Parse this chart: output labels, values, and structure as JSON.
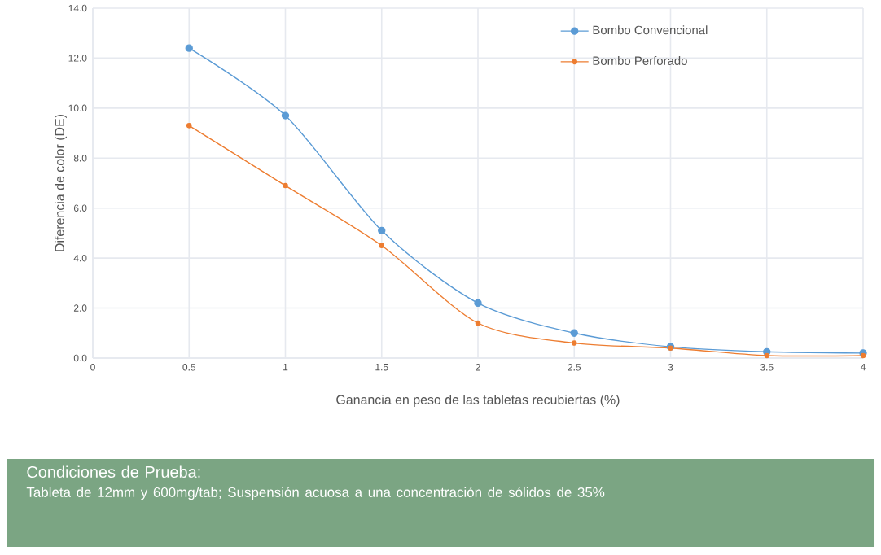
{
  "chart_data": {
    "type": "line",
    "xlabel": "Ganancia en peso de las tabletas recubiertas (%)",
    "ylabel": "Diferencia de color (DE)",
    "x": [
      0.5,
      1,
      1.5,
      2,
      2.5,
      3,
      3.5,
      4
    ],
    "series": [
      {
        "name": "Bombo Convencional",
        "color": "#5b9bd5",
        "values": [
          12.4,
          9.7,
          5.1,
          2.2,
          1.0,
          0.45,
          0.25,
          0.2
        ]
      },
      {
        "name": "Bombo Perforado",
        "color": "#ed7d31",
        "values": [
          9.3,
          6.9,
          4.5,
          1.4,
          0.6,
          0.4,
          0.1,
          0.1
        ]
      }
    ],
    "xlim": [
      0,
      4
    ],
    "ylim": [
      0,
      14
    ],
    "xticks": [
      0,
      0.5,
      1,
      1.5,
      2,
      2.5,
      3,
      3.5,
      4
    ],
    "yticks": [
      {
        "value": 0,
        "label": "0.0"
      },
      {
        "value": 2,
        "label": "2.0"
      },
      {
        "value": 4,
        "label": "4.0"
      },
      {
        "value": 6,
        "label": "6.0"
      },
      {
        "value": 8,
        "label": "8.0"
      },
      {
        "value": 10,
        "label": "10.0"
      },
      {
        "value": 12,
        "label": "12.0"
      },
      {
        "value": 14,
        "label": "14.0"
      }
    ],
    "grid": true,
    "legend": "top right",
    "marker": "circle",
    "line_style": "solid",
    "annotations": [
      "Condiciones de Prueba:",
      "Tableta de 12mm y 600mg/tab; Suspensión acuosa a una concentración de sólidos de 35%"
    ]
  }
}
